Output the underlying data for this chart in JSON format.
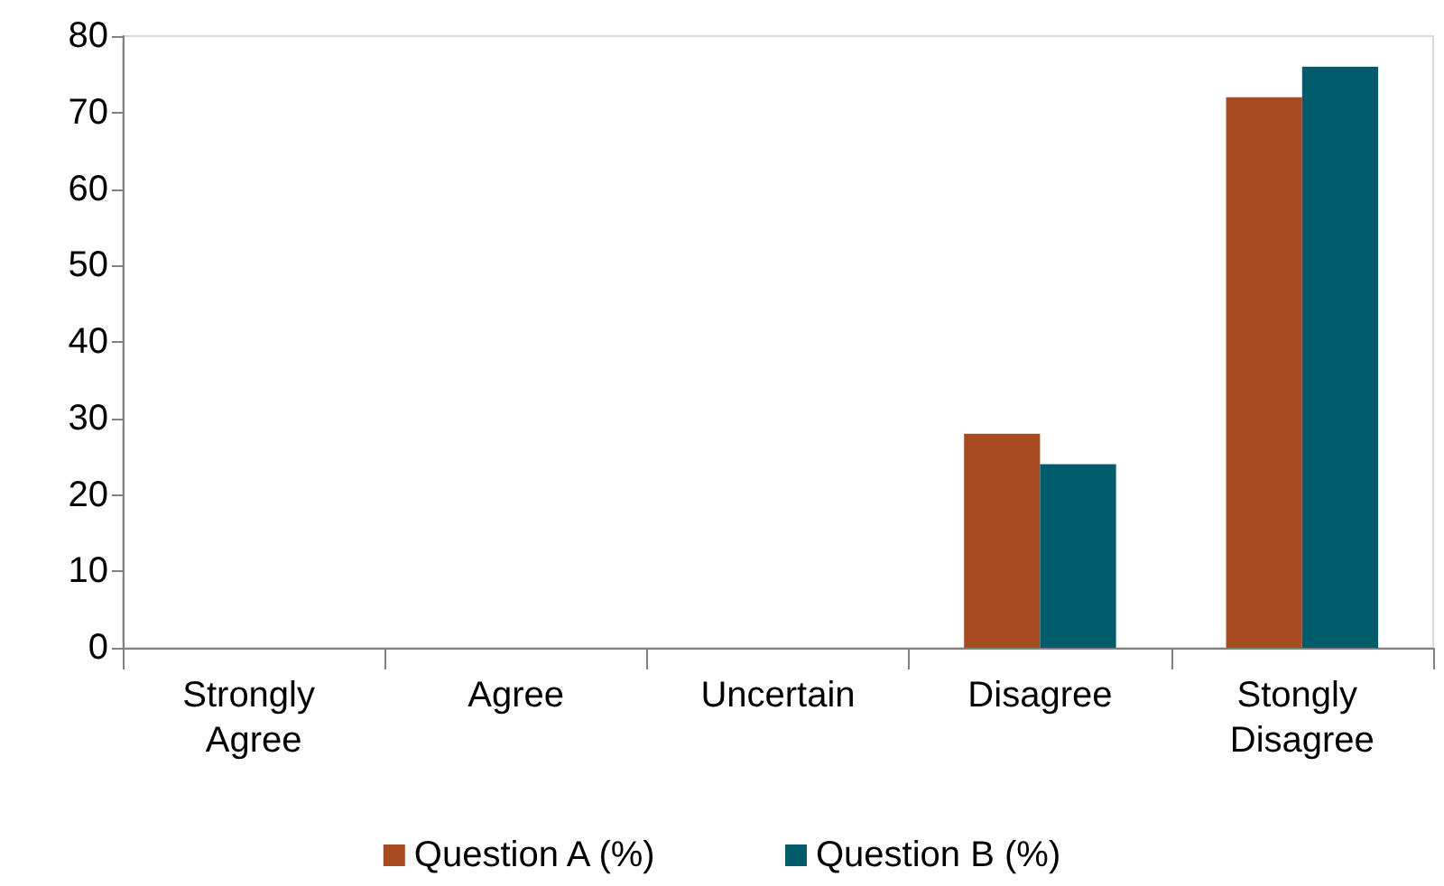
{
  "chart_data": {
    "type": "bar",
    "categories": [
      "Strongly Agree",
      "Agree",
      "Uncertain",
      "Disagree",
      "Stongly Disagree"
    ],
    "series": [
      {
        "name": "Question A (%)",
        "color": "#a84b23",
        "values": [
          0,
          0,
          0,
          28,
          72
        ]
      },
      {
        "name": "Question B (%)",
        "color": "#005b6b",
        "values": [
          0,
          0,
          0,
          24,
          76
        ]
      }
    ],
    "ylim": [
      0,
      80
    ],
    "yticks": [
      0,
      10,
      20,
      30,
      40,
      50,
      60,
      70,
      80
    ],
    "grid": false,
    "legend": "bottom"
  }
}
